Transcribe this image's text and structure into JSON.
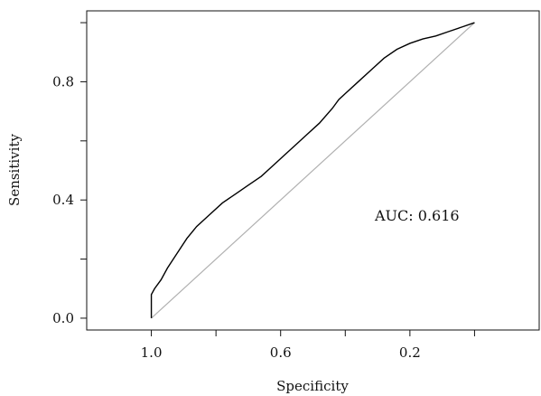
{
  "chart_data": {
    "type": "line",
    "xlabel": "Specificity",
    "ylabel": "Sensitivity",
    "x_reversed": true,
    "xlim": [
      1.2,
      -0.2
    ],
    "ylim": [
      -0.04,
      1.04
    ],
    "x_ticks": [
      1.0,
      0.8,
      0.6,
      0.4,
      0.2,
      0.0
    ],
    "x_tick_labels": [
      "1.0",
      "",
      "0.6",
      "",
      "0.2",
      ""
    ],
    "y_ticks": [
      0.0,
      0.2,
      0.4,
      0.6,
      0.8,
      1.0
    ],
    "y_tick_labels": [
      "0.0",
      "",
      "0.4",
      "",
      "0.8",
      ""
    ],
    "annotation": "AUC: 0.616",
    "grid": false,
    "reference_line": {
      "from": [
        1.0,
        0.0
      ],
      "to": [
        0.0,
        1.0
      ],
      "color": "#b0b0b0"
    },
    "series": [
      {
        "color": "#000000",
        "x": [
          1.0,
          1.0,
          0.99,
          0.97,
          0.95,
          0.92,
          0.89,
          0.86,
          0.82,
          0.78,
          0.74,
          0.7,
          0.66,
          0.62,
          0.58,
          0.56,
          0.52,
          0.48,
          0.44,
          0.42,
          0.4,
          0.36,
          0.32,
          0.28,
          0.24,
          0.2,
          0.16,
          0.12,
          0.08,
          0.04,
          0.0
        ],
        "y": [
          0.0,
          0.08,
          0.1,
          0.13,
          0.17,
          0.22,
          0.27,
          0.31,
          0.35,
          0.39,
          0.42,
          0.45,
          0.48,
          0.52,
          0.56,
          0.58,
          0.62,
          0.66,
          0.71,
          0.74,
          0.76,
          0.8,
          0.84,
          0.88,
          0.91,
          0.93,
          0.945,
          0.955,
          0.97,
          0.985,
          1.0
        ]
      }
    ]
  }
}
